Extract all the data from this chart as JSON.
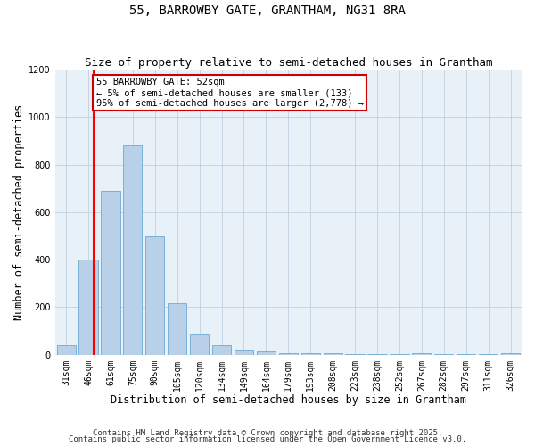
{
  "title": "55, BARROWBY GATE, GRANTHAM, NG31 8RA",
  "subtitle": "Size of property relative to semi-detached houses in Grantham",
  "xlabel": "Distribution of semi-detached houses by size in Grantham",
  "ylabel": "Number of semi-detached properties",
  "categories": [
    "31sqm",
    "46sqm",
    "61sqm",
    "75sqm",
    "90sqm",
    "105sqm",
    "120sqm",
    "134sqm",
    "149sqm",
    "164sqm",
    "179sqm",
    "193sqm",
    "208sqm",
    "223sqm",
    "238sqm",
    "252sqm",
    "267sqm",
    "282sqm",
    "297sqm",
    "311sqm",
    "326sqm"
  ],
  "values": [
    40,
    400,
    690,
    880,
    500,
    215,
    90,
    40,
    20,
    15,
    5,
    8,
    5,
    1,
    1,
    1,
    8,
    1,
    1,
    1,
    8
  ],
  "bar_color": "#b8d0e8",
  "bar_edge_color": "#6aaad4",
  "grid_color": "#c0d0e0",
  "background_color": "#e8f0f8",
  "red_line_x": 1.25,
  "annotation_text": "55 BARROWBY GATE: 52sqm\n← 5% of semi-detached houses are smaller (133)\n95% of semi-detached houses are larger (2,778) →",
  "annotation_box_color": "#ffffff",
  "annotation_box_edge_color": "#cc0000",
  "footnote1": "Contains HM Land Registry data © Crown copyright and database right 2025.",
  "footnote2": "Contains public sector information licensed under the Open Government Licence v3.0.",
  "ylim": [
    0,
    1200
  ],
  "yticks": [
    0,
    200,
    400,
    600,
    800,
    1000,
    1200
  ],
  "title_fontsize": 10,
  "subtitle_fontsize": 9,
  "axis_label_fontsize": 8.5,
  "tick_fontsize": 7,
  "footnote_fontsize": 6.5,
  "annotation_fontsize": 7.5
}
